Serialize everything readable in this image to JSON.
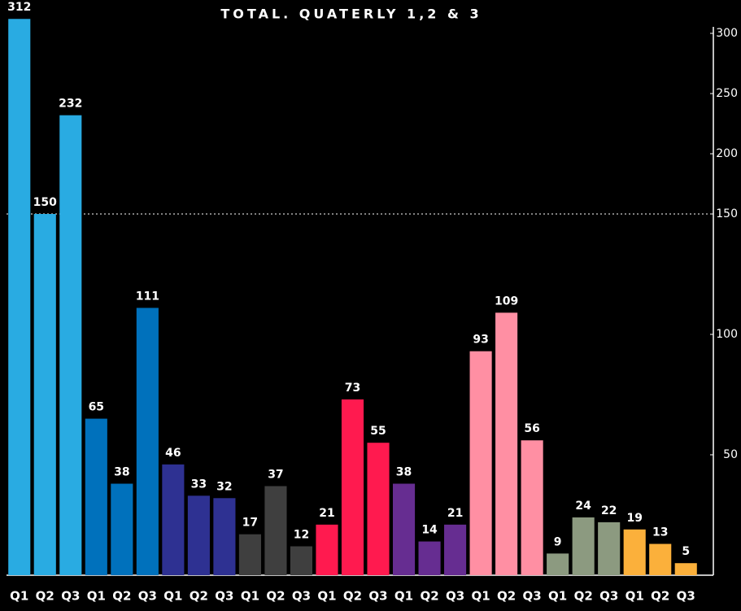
{
  "chart_data": {
    "type": "bar",
    "title": "TOTAL. QUATERLY 1,2 & 3",
    "categories": [
      "Q1",
      "Q2",
      "Q3",
      "Q1",
      "Q2",
      "Q3",
      "Q1",
      "Q2",
      "Q3",
      "Q1",
      "Q2",
      "Q3",
      "Q1",
      "Q2",
      "Q3",
      "Q1",
      "Q2",
      "Q3",
      "Q1",
      "Q2",
      "Q3",
      "Q1",
      "Q2",
      "Q3",
      "Q1",
      "Q2",
      "Q3"
    ],
    "values": [
      312,
      150,
      232,
      65,
      38,
      111,
      46,
      33,
      32,
      17,
      37,
      12,
      21,
      73,
      55,
      38,
      14,
      21,
      93,
      109,
      56,
      9,
      24,
      22,
      19,
      13,
      5
    ],
    "colors": [
      "#29abe2",
      "#29abe2",
      "#29abe2",
      "#0071bc",
      "#0071bc",
      "#0071bc",
      "#2e3192",
      "#2e3192",
      "#2e3192",
      "#3f3f3f",
      "#3f3f3f",
      "#3f3f3f",
      "#ff1a4f",
      "#ff1a4f",
      "#ff1a4f",
      "#662d91",
      "#662d91",
      "#662d91",
      "#ff8fa3",
      "#ff8fa3",
      "#ff8fa3",
      "#8c9a80",
      "#8c9a80",
      "#8c9a80",
      "#fbb03b",
      "#fbb03b",
      "#fbb03b"
    ],
    "ylim": [
      0,
      300
    ],
    "yticks": [
      50,
      100,
      150,
      200,
      250,
      300
    ],
    "axis_break": 150
  }
}
